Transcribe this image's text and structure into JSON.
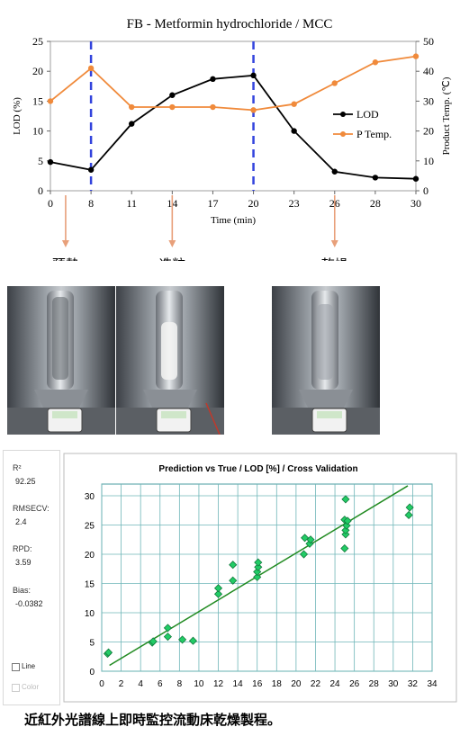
{
  "chart_data": [
    {
      "type": "line",
      "title": "FB - Metformin hydrochloride / MCC",
      "xlabel": "Time (min)",
      "ylabel_left": "LOD (%)",
      "ylabel_right": "Product Temp. (℃)",
      "x_ticks": [
        "0",
        "8",
        "11",
        "14",
        "17",
        "20",
        "23",
        "26",
        "28",
        "30"
      ],
      "y_left_ticks": [
        "0",
        "5",
        "10",
        "15",
        "20",
        "25"
      ],
      "y_right_ticks": [
        "0",
        "10",
        "20",
        "30",
        "40",
        "50"
      ],
      "ylim_left": [
        0,
        25
      ],
      "ylim_right": [
        0,
        50
      ],
      "legend_position": "right",
      "series": [
        {
          "name": "LOD",
          "axis": "left",
          "color": "#000000",
          "marker": "circle",
          "x": [
            0,
            8,
            11,
            14,
            17,
            20,
            23,
            26,
            28,
            30
          ],
          "values": [
            4.8,
            3.5,
            11.2,
            16.0,
            18.7,
            19.3,
            10.0,
            3.2,
            2.2,
            2.0
          ]
        },
        {
          "name": "P Temp.",
          "axis": "right",
          "color": "#f08a3b",
          "marker": "circle",
          "x": [
            0,
            8,
            11,
            14,
            17,
            20,
            23,
            26,
            28,
            30
          ],
          "values": [
            30,
            41,
            28,
            28,
            28,
            27,
            29,
            36,
            43,
            45
          ]
        }
      ],
      "vertical_markers": [
        8,
        20
      ],
      "marker_color": "#3344dd",
      "stage_labels": [
        {
          "label": "預熱",
          "x": 3
        },
        {
          "label": "造粒",
          "x": 14
        },
        {
          "label": "乾燥",
          "x": 26
        }
      ]
    },
    {
      "type": "scatter",
      "title": "Prediction vs True  /  LOD [%]  /  Cross Validation",
      "x_ticks": [
        "0",
        "2",
        "4",
        "6",
        "8",
        "10",
        "12",
        "14",
        "16",
        "18",
        "20",
        "22",
        "24",
        "26",
        "28",
        "30",
        "32",
        "34"
      ],
      "y_ticks": [
        "0",
        "5",
        "10",
        "15",
        "20",
        "25",
        "30"
      ],
      "xlim": [
        0,
        34
      ],
      "ylim": [
        0,
        32
      ],
      "grid": true,
      "point_color": "#22cc66",
      "line_color": "#228b22",
      "fit_line": [
        [
          0.8,
          1.0
        ],
        [
          31.5,
          31.7
        ]
      ],
      "points": [
        [
          0.6,
          3.0
        ],
        [
          0.7,
          3.2
        ],
        [
          5.2,
          4.9
        ],
        [
          5.3,
          5.1
        ],
        [
          6.8,
          5.9
        ],
        [
          6.8,
          7.4
        ],
        [
          8.3,
          5.4
        ],
        [
          9.4,
          5.2
        ],
        [
          12.0,
          13.2
        ],
        [
          12.0,
          14.2
        ],
        [
          13.5,
          15.5
        ],
        [
          13.5,
          18.2
        ],
        [
          16.0,
          16.1
        ],
        [
          16.0,
          17.0
        ],
        [
          16.1,
          17.8
        ],
        [
          16.1,
          18.6
        ],
        [
          20.8,
          20.0
        ],
        [
          20.9,
          22.8
        ],
        [
          21.4,
          21.8
        ],
        [
          21.5,
          22.5
        ],
        [
          25.0,
          21.0
        ],
        [
          25.1,
          23.4
        ],
        [
          25.1,
          24.1
        ],
        [
          25.2,
          24.9
        ],
        [
          25.0,
          25.9
        ],
        [
          25.3,
          25.7
        ],
        [
          25.1,
          29.4
        ],
        [
          31.6,
          26.7
        ],
        [
          31.7,
          28.0
        ]
      ]
    }
  ],
  "stats": [
    {
      "label": "R²",
      "value": "92.25"
    },
    {
      "label": "RMSECV:",
      "value": "2.4"
    },
    {
      "label": "RPD:",
      "value": "3.59"
    },
    {
      "label": "Bias:",
      "value": "-0.0382"
    }
  ],
  "options": [
    {
      "label": "Line"
    },
    {
      "label": "Color"
    }
  ],
  "caption": "近紅外光譜線上即時監控流動床乾燥製程。"
}
